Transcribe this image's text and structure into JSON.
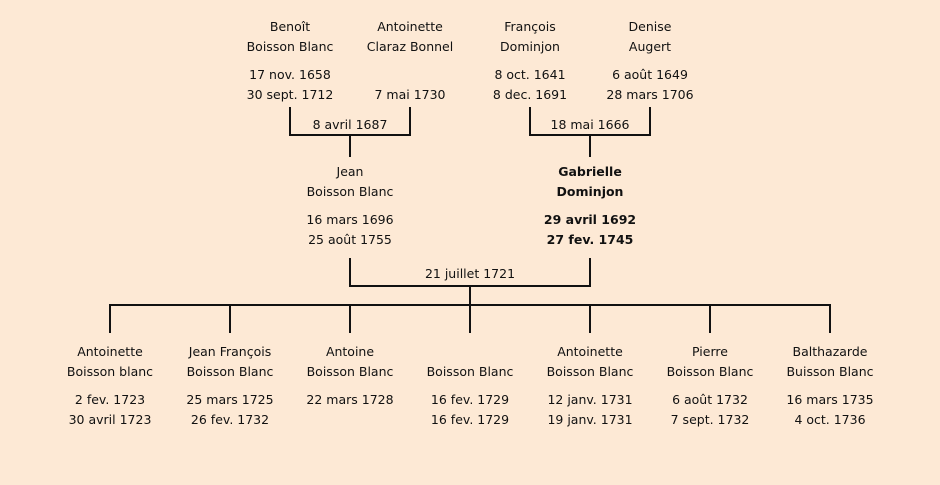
{
  "colors": {
    "background": "#fde9d5",
    "lines": "#111111",
    "text": "#111111"
  },
  "grandparents": [
    {
      "first": "Benoît",
      "last": "Boisson Blanc",
      "birth": "17 nov. 1658",
      "death": "30 sept. 1712"
    },
    {
      "first": "Antoinette",
      "last": "Claraz Bonnel",
      "birth": "",
      "death": "7 mai 1730"
    },
    {
      "first": "François",
      "last": "Dominjon",
      "birth": "8 oct. 1641",
      "death": "8 dec. 1691"
    },
    {
      "first": "Denise",
      "last": "Augert",
      "birth": "6 août 1649",
      "death": "28 mars 1706"
    }
  ],
  "grandparent_marriages": [
    "8 avril 1687",
    "18 mai 1666"
  ],
  "parents": [
    {
      "first": "Jean",
      "last": "Boisson Blanc",
      "birth": "16 mars 1696",
      "death": "25 août 1755",
      "highlighted": false
    },
    {
      "first": "Gabrielle",
      "last": "Dominjon",
      "birth": "29 avril 1692",
      "death": "27 fev. 1745",
      "highlighted": true
    }
  ],
  "parent_marriage": "21 juillet 1721",
  "children": [
    {
      "first": "Antoinette",
      "last": "Boisson blanc",
      "birth": "2 fev. 1723",
      "death": "30 avril 1723"
    },
    {
      "first": "Jean François",
      "last": "Boisson Blanc",
      "birth": "25 mars 1725",
      "death": "26 fev. 1732"
    },
    {
      "first": "Antoine",
      "last": "Boisson Blanc",
      "birth": "22 mars 1728",
      "death": ""
    },
    {
      "first": "",
      "last": "Boisson Blanc",
      "birth": "16 fev. 1729",
      "death": "16 fev. 1729"
    },
    {
      "first": "Antoinette",
      "last": "Boisson Blanc",
      "birth": "12 janv. 1731",
      "death": "19 janv. 1731"
    },
    {
      "first": "Pierre",
      "last": "Boisson Blanc",
      "birth": "6 août 1732",
      "death": "7 sept. 1732"
    },
    {
      "first": "Balthazarde",
      "last": "Buisson Blanc",
      "birth": "16 mars 1735",
      "death": "4 oct. 1736"
    }
  ]
}
